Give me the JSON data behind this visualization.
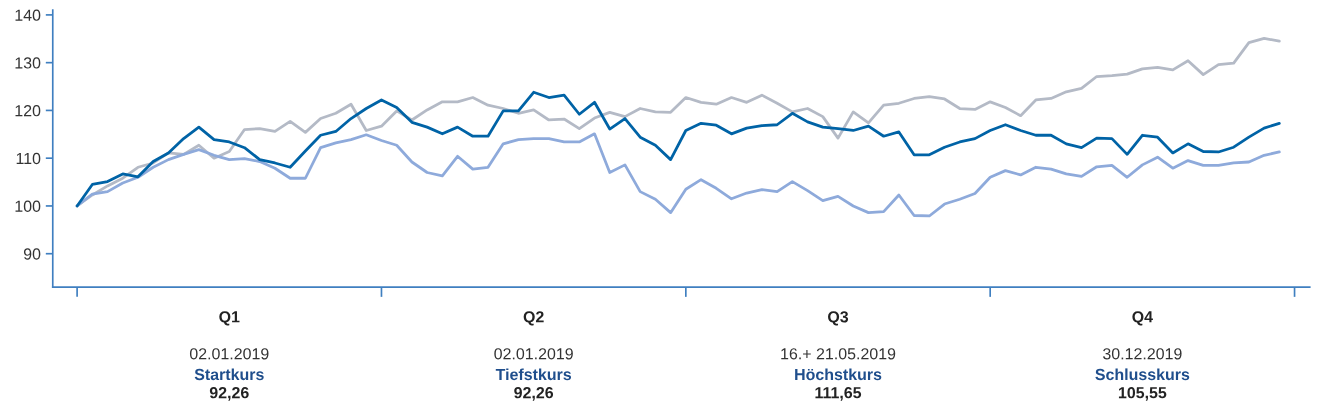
{
  "chart_data": {
    "type": "line",
    "categories": [
      null,
      null,
      null,
      null,
      null,
      null,
      null,
      null,
      null,
      null,
      "Q1",
      null,
      null,
      null,
      null,
      null,
      null,
      null,
      null,
      null,
      null,
      null,
      null,
      null,
      null,
      null,
      null,
      null,
      null,
      null,
      "Q2",
      null,
      null,
      null,
      null,
      null,
      null,
      null,
      null,
      null,
      null,
      null,
      null,
      null,
      null,
      null,
      null,
      null,
      null,
      null,
      "Q3",
      null,
      null,
      null,
      null,
      null,
      null,
      null,
      null,
      null,
      null,
      null,
      null,
      null,
      null,
      null,
      null,
      null,
      null,
      null,
      "Q4",
      null,
      null,
      null,
      null,
      null,
      null,
      null,
      null,
      null
    ],
    "ylim": [
      83,
      141
    ],
    "yticks": [
      90,
      100,
      110,
      120,
      130,
      140
    ],
    "series": [
      {
        "color": "#b4bac6",
        "values": [
          100,
          102.3,
          104.2,
          105.8,
          108.1,
          109.0,
          111.1,
          110.8,
          112.7,
          110.0,
          111.4,
          116.0,
          116.2,
          115.6,
          117.7,
          115.4,
          118.3,
          119.4,
          121.3,
          115.8,
          116.7,
          119.9,
          118.0,
          120.1,
          121.8,
          121.8,
          122.7,
          121.1,
          120.4,
          119.4,
          120.1,
          118.0,
          118.2,
          116.2,
          118.4,
          119.6,
          118.7,
          120.4,
          119.7,
          119.6,
          122.7,
          121.7,
          121.3,
          122.7,
          121.7,
          123.2,
          121.5,
          119.7,
          120.4,
          118.7,
          114.2,
          119.7,
          117.4,
          121.1,
          121.5,
          122.5,
          122.9,
          122.4,
          120.4,
          120.2,
          121.8,
          120.6,
          118.9,
          122.2,
          122.5,
          123.9,
          124.6,
          127.1,
          127.3,
          127.6,
          128.7,
          129.0,
          128.5,
          130.4,
          127.5,
          129.6,
          129.9,
          134.2,
          135.1,
          134.5
        ]
      },
      {
        "color": "#8eaadb",
        "values": [
          100,
          102.5,
          103.0,
          104.8,
          106.0,
          108.1,
          109.7,
          110.8,
          111.8,
          110.6,
          109.7,
          109.9,
          109.3,
          107.9,
          105.8,
          105.8,
          112.2,
          113.2,
          113.9,
          114.9,
          113.7,
          112.7,
          109.2,
          107.0,
          106.3,
          110.4,
          107.7,
          108.1,
          113.0,
          113.9,
          114.1,
          114.1,
          113.4,
          113.4,
          115.1,
          107.0,
          108.6,
          103.0,
          101.4,
          98.6,
          103.5,
          105.5,
          103.7,
          101.5,
          102.7,
          103.4,
          103.0,
          105.1,
          103.2,
          101.1,
          102.0,
          100.0,
          98.6,
          98.8,
          102.3,
          98.0,
          97.9,
          100.4,
          101.4,
          102.6,
          106.0,
          107.4,
          106.5,
          108.1,
          107.7,
          106.7,
          106.2,
          108.2,
          108.5,
          106.0,
          108.6,
          110.2,
          107.9,
          109.5,
          108.5,
          108.5,
          109.0,
          109.2,
          110.6,
          111.3
        ]
      },
      {
        "color": "#0063a6",
        "values": [
          100,
          104.5,
          105.1,
          106.7,
          106.1,
          109.3,
          111.1,
          114.1,
          116.5,
          113.9,
          113.4,
          112.2,
          109.7,
          109.0,
          108.1,
          111.5,
          114.8,
          115.6,
          118.3,
          120.4,
          122.2,
          120.6,
          117.5,
          116.5,
          115.1,
          116.5,
          114.6,
          114.6,
          119.9,
          119.9,
          123.8,
          122.7,
          123.2,
          119.2,
          121.7,
          116.1,
          118.3,
          114.4,
          112.7,
          109.7,
          115.8,
          117.3,
          116.9,
          115.1,
          116.3,
          116.8,
          117.0,
          119.4,
          117.6,
          116.5,
          116.2,
          115.8,
          116.7,
          114.6,
          115.5,
          110.7,
          110.7,
          112.3,
          113.4,
          114.1,
          115.8,
          117.0,
          115.8,
          114.8,
          114.8,
          113.0,
          112.2,
          114.2,
          114.1,
          110.8,
          114.8,
          114.4,
          111.1,
          113.0,
          111.4,
          111.3,
          112.3,
          114.4,
          116.3,
          117.3
        ]
      }
    ],
    "annotations": [
      "02.01.2019",
      "Startkurs",
      "92,26",
      "02.01.2019",
      "Tiefstkurs",
      "92,26",
      "16.+ 21.05.2019",
      "Höchstkurs",
      "111,65",
      "30.12.2019",
      "Schlusskurs",
      "105,55"
    ]
  }
}
